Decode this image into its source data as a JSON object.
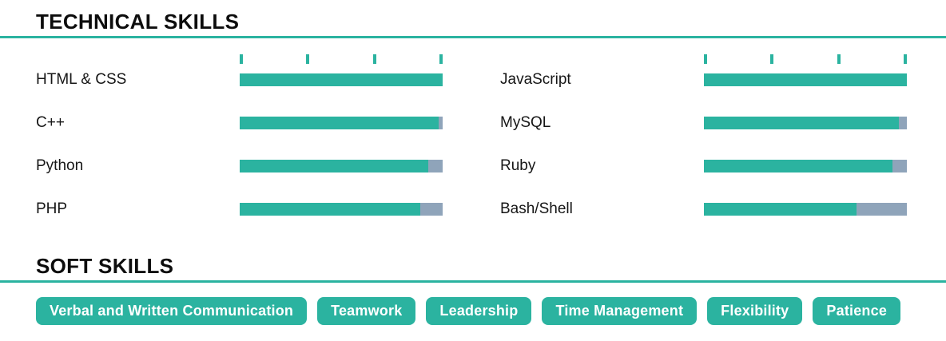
{
  "colors": {
    "teal": "#2bb3a0",
    "track_gray": "#8fa4ba",
    "heading_text": "#0d0d0d"
  },
  "technical": {
    "title": "TECHNICAL SKILLS",
    "columns": [
      {
        "skills": [
          {
            "name": "HTML & CSS",
            "percent": 100
          },
          {
            "name": "C++",
            "percent": 98
          },
          {
            "name": "Python",
            "percent": 93
          },
          {
            "name": "PHP",
            "percent": 89
          }
        ]
      },
      {
        "skills": [
          {
            "name": "JavaScript",
            "percent": 100
          },
          {
            "name": "MySQL",
            "percent": 96
          },
          {
            "name": "Ruby",
            "percent": 93
          },
          {
            "name": "Bash/Shell",
            "percent": 75
          }
        ]
      }
    ]
  },
  "soft": {
    "title": "SOFT SKILLS",
    "skills": [
      "Verbal and Written Communication",
      "Teamwork",
      "Leadership",
      "Time Management",
      "Flexibility",
      "Patience"
    ]
  }
}
